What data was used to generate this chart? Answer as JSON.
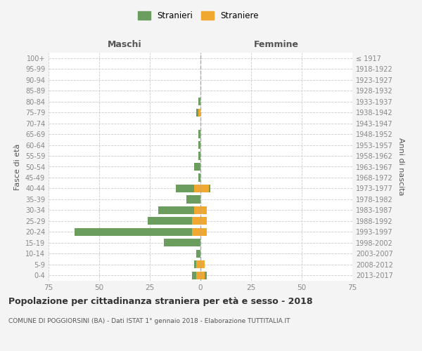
{
  "age_groups": [
    "100+",
    "95-99",
    "90-94",
    "85-89",
    "80-84",
    "75-79",
    "70-74",
    "65-69",
    "60-64",
    "55-59",
    "50-54",
    "45-49",
    "40-44",
    "35-39",
    "30-34",
    "25-29",
    "20-24",
    "15-19",
    "10-14",
    "5-9",
    "0-4"
  ],
  "birth_years": [
    "≤ 1917",
    "1918-1922",
    "1923-1927",
    "1928-1932",
    "1933-1937",
    "1938-1942",
    "1943-1947",
    "1948-1952",
    "1953-1957",
    "1958-1962",
    "1963-1967",
    "1968-1972",
    "1973-1977",
    "1978-1982",
    "1983-1987",
    "1988-1992",
    "1993-1997",
    "1998-2002",
    "2003-2007",
    "2008-2012",
    "2013-2017"
  ],
  "males_stranieri": [
    0,
    0,
    0,
    0,
    1,
    1,
    0,
    1,
    1,
    1,
    3,
    1,
    9,
    7,
    18,
    22,
    58,
    18,
    2,
    1,
    2
  ],
  "males_straniere": [
    0,
    0,
    0,
    0,
    0,
    1,
    0,
    0,
    0,
    0,
    0,
    0,
    3,
    0,
    3,
    4,
    4,
    0,
    0,
    2,
    2
  ],
  "females_stranieri": [
    0,
    0,
    0,
    0,
    0,
    0,
    0,
    0,
    0,
    0,
    0,
    0,
    1,
    0,
    0,
    0,
    0,
    0,
    0,
    0,
    1
  ],
  "females_straniere": [
    0,
    0,
    0,
    0,
    0,
    0,
    0,
    0,
    0,
    0,
    0,
    0,
    4,
    0,
    3,
    3,
    3,
    0,
    0,
    2,
    2
  ],
  "color_stranieri": "#6b9e5e",
  "color_straniere": "#f0a830",
  "title": "Popolazione per cittadinanza straniera per età e sesso - 2018",
  "subtitle": "COMUNE DI POGGIORSINI (BA) - Dati ISTAT 1° gennaio 2018 - Elaborazione TUTTITALIA.IT",
  "xlabel_left": "Maschi",
  "xlabel_right": "Femmine",
  "ylabel_left": "Fasce di età",
  "ylabel_right": "Anni di nascita",
  "xlim": 75,
  "legend_stranieri": "Stranieri",
  "legend_straniere": "Straniere",
  "bg_color": "#f4f4f4",
  "plot_bg_color": "#ffffff",
  "grid_color": "#cccccc",
  "tick_color": "#888888",
  "text_color": "#555555",
  "header_color": "#555555"
}
